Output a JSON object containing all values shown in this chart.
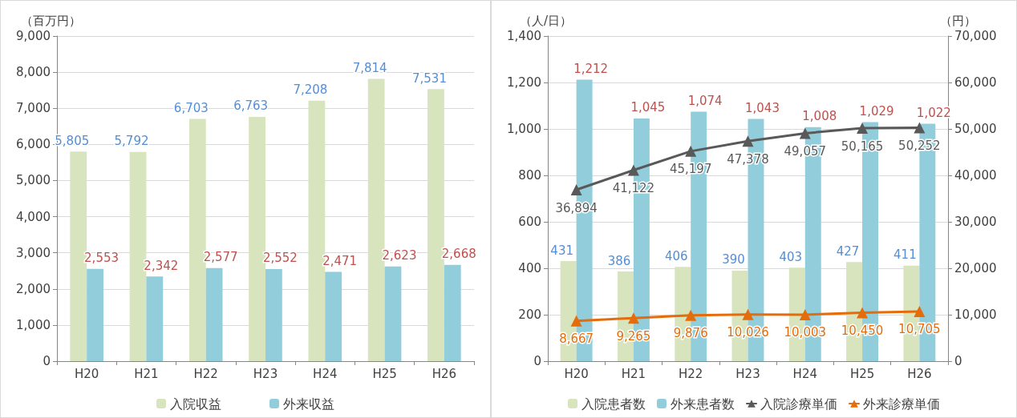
{
  "chart_data": [
    {
      "type": "bar",
      "ylabel": "（百万円）",
      "categories": [
        "H20",
        "H21",
        "H22",
        "H23",
        "H24",
        "H25",
        "H26"
      ],
      "series": [
        {
          "name": "入院収益",
          "color": "#d7e4bd",
          "values": [
            5805,
            5792,
            6703,
            6763,
            7208,
            7814,
            7531
          ],
          "value_labels": [
            "5,805",
            "5,792",
            "6,703",
            "6,763",
            "7,208",
            "7,814",
            "7,531"
          ]
        },
        {
          "name": "外来収益",
          "color": "#92cddc",
          "values": [
            2553,
            2342,
            2577,
            2552,
            2471,
            2623,
            2668
          ],
          "value_labels": [
            "2,553",
            "2,342",
            "2,577",
            "2,552",
            "2,471",
            "2,623",
            "2,668"
          ]
        }
      ],
      "ylim": [
        0,
        9000
      ],
      "yticks": [
        0,
        {
          "value": 1000,
          "label": "1,000"
        },
        {
          "value": 2000,
          "label": "2,000"
        },
        {
          "value": 3000,
          "label": "3,000"
        },
        {
          "value": 4000,
          "label": "4,000"
        },
        {
          "value": 5000,
          "label": "5,000"
        },
        {
          "value": 6000,
          "label": "6,000"
        },
        {
          "value": 7000,
          "label": "7,000"
        },
        {
          "value": 8000,
          "label": "8,000"
        },
        {
          "value": 9000,
          "label": "9,000"
        }
      ],
      "grid": "y",
      "legend": "bottom"
    },
    {
      "type": "bar",
      "ylabel": "（人/日）",
      "y2label": "（円）",
      "categories": [
        "H20",
        "H21",
        "H22",
        "H23",
        "H24",
        "H25",
        "H26"
      ],
      "series": [
        {
          "name": "入院患者数",
          "color": "#d7e4bd",
          "values": [
            431,
            386,
            406,
            390,
            403,
            427,
            411
          ],
          "value_labels": [
            "431",
            "386",
            "406",
            "390",
            "403",
            "427",
            "411"
          ]
        },
        {
          "name": "外来患者数",
          "color": "#92cddc",
          "values": [
            1212,
            1045,
            1074,
            1043,
            1008,
            1029,
            1022
          ],
          "value_labels": [
            "1,212",
            "1,045",
            "1,074",
            "1,043",
            "1,008",
            "1,029",
            "1,022"
          ]
        },
        {
          "name": "入院診療単価",
          "type": "line",
          "axis": "y2",
          "color": "#595959",
          "marker": "triangle",
          "values": [
            36894,
            41122,
            45197,
            47378,
            49057,
            50165,
            50252
          ],
          "value_labels": [
            "36,894",
            "41,122",
            "45,197",
            "47,378",
            "49,057",
            "50,165",
            "50,252"
          ]
        },
        {
          "name": "外来診療単価",
          "type": "line",
          "axis": "y2",
          "color": "#e46c0a",
          "marker": "triangle",
          "values": [
            8667,
            9265,
            9876,
            10026,
            10003,
            10450,
            10705
          ],
          "value_labels": [
            "8,667",
            "9,265",
            "9,876",
            "10,026",
            "10,003",
            "10,450",
            "10,705"
          ]
        }
      ],
      "ylim": [
        0,
        1400
      ],
      "yticks": [
        0,
        200,
        400,
        600,
        800,
        {
          "value": 1000,
          "label": "1,000"
        },
        {
          "value": 1200,
          "label": "1,200"
        },
        {
          "value": 1400,
          "label": "1,400"
        }
      ],
      "y2lim": [
        0,
        70000
      ],
      "y2ticks": [
        0,
        {
          "value": 10000,
          "label": "10,000"
        },
        {
          "value": 20000,
          "label": "20,000"
        },
        {
          "value": 30000,
          "label": "30,000"
        },
        {
          "value": 40000,
          "label": "40,000"
        },
        {
          "value": 50000,
          "label": "50,000"
        },
        {
          "value": 60000,
          "label": "60,000"
        },
        {
          "value": 70000,
          "label": "70,000"
        }
      ],
      "grid": "y",
      "legend": "bottom"
    }
  ]
}
